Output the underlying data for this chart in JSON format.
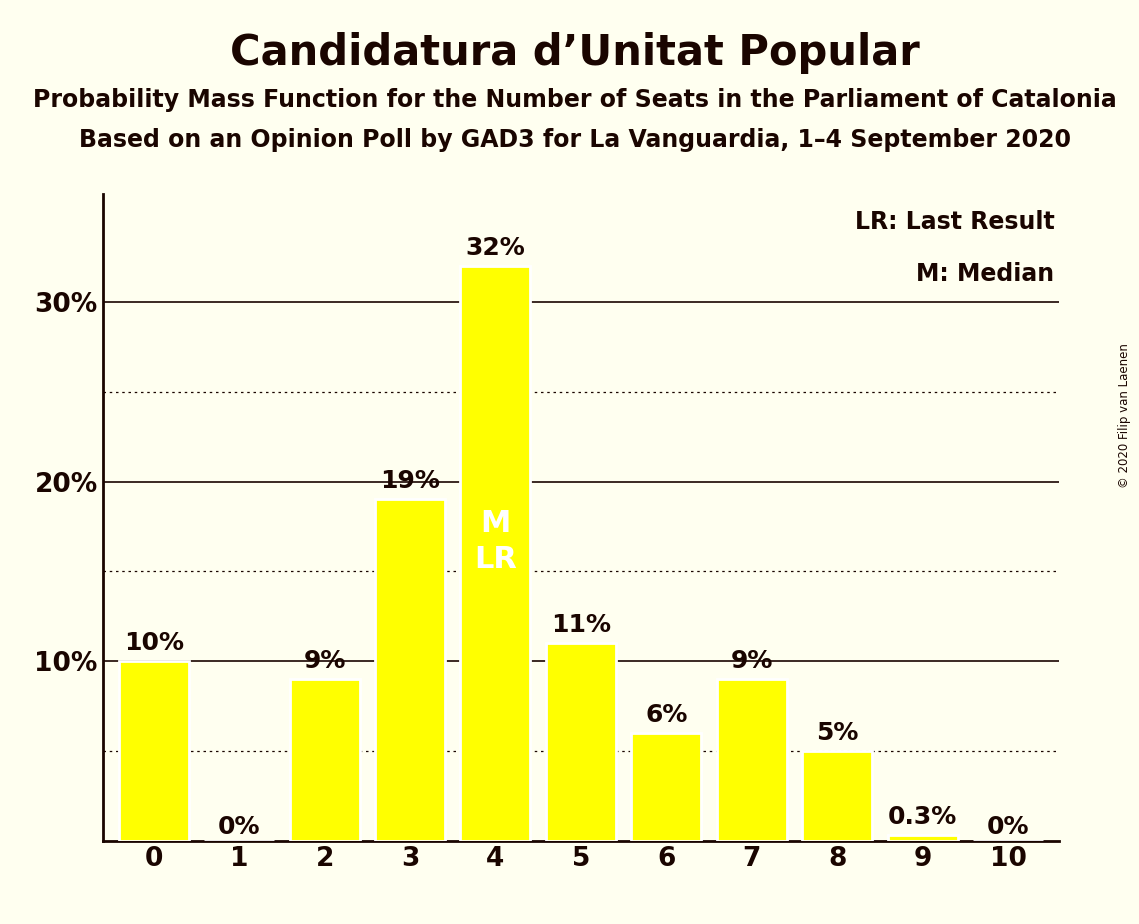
{
  "title": "Candidatura d’Unitat Popular",
  "subtitle1": "Probability Mass Function for the Number of Seats in the Parliament of Catalonia",
  "subtitle2": "Based on an Opinion Poll by GAD3 for La Vanguardia, 1–4 September 2020",
  "copyright": "© 2020 Filip van Laenen",
  "categories": [
    0,
    1,
    2,
    3,
    4,
    5,
    6,
    7,
    8,
    9,
    10
  ],
  "values": [
    0.1,
    0.0,
    0.09,
    0.19,
    0.32,
    0.11,
    0.06,
    0.09,
    0.05,
    0.003,
    0.0
  ],
  "labels": [
    "10%",
    "0%",
    "9%",
    "19%",
    "32%",
    "11%",
    "6%",
    "9%",
    "5%",
    "0.3%",
    "0%"
  ],
  "bar_color": "#FFFF00",
  "bar_edge_color": "#FFFFFF",
  "background_color": "#FFFFF0",
  "text_color": "#1a0500",
  "median_seat": 4,
  "last_result_seat": 4,
  "legend_lr": "LR: Last Result",
  "legend_m": "M: Median",
  "ylim": [
    0,
    0.36
  ],
  "yticks": [
    0.0,
    0.1,
    0.2,
    0.3
  ],
  "ytick_labels": [
    "",
    "10%",
    "20%",
    "30%"
  ],
  "dotted_yticks": [
    0.05,
    0.15,
    0.25
  ],
  "solid_yticks": [
    0.1,
    0.2,
    0.3
  ],
  "title_fontsize": 30,
  "subtitle_fontsize": 17,
  "tick_fontsize": 19,
  "bar_label_fontsize": 18,
  "legend_fontsize": 17,
  "ml_fontsize": 22
}
